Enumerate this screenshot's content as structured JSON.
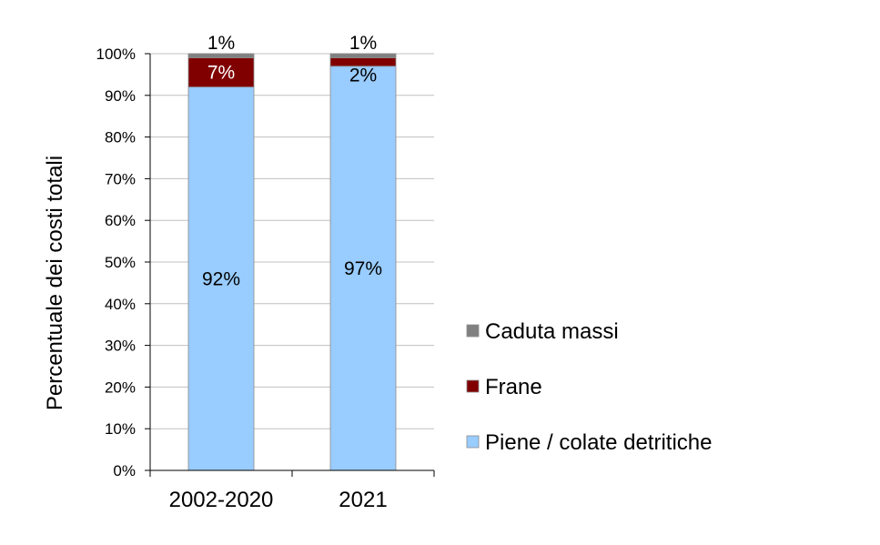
{
  "chart_data": {
    "type": "bar",
    "stacked": true,
    "categories": [
      "2002-2020",
      "2021"
    ],
    "series": [
      {
        "name": "Piene / colate detritiche",
        "values": [
          92,
          97
        ],
        "labels": [
          "92%",
          "97%"
        ],
        "color": "#99ccff"
      },
      {
        "name": "Frane",
        "values": [
          7,
          2
        ],
        "labels": [
          "7%",
          "2%"
        ],
        "color": "#800000"
      },
      {
        "name": "Caduta massi",
        "values": [
          1,
          1
        ],
        "labels": [
          "1%",
          "1%"
        ],
        "color": "#808080"
      }
    ],
    "ylabel": "Percentuale dei costi totali",
    "ylim": [
      0,
      100
    ],
    "yticks": [
      "0%",
      "10%",
      "20%",
      "30%",
      "40%",
      "50%",
      "60%",
      "70%",
      "80%",
      "90%",
      "100%"
    ],
    "grid": true,
    "legend_position": "right"
  }
}
